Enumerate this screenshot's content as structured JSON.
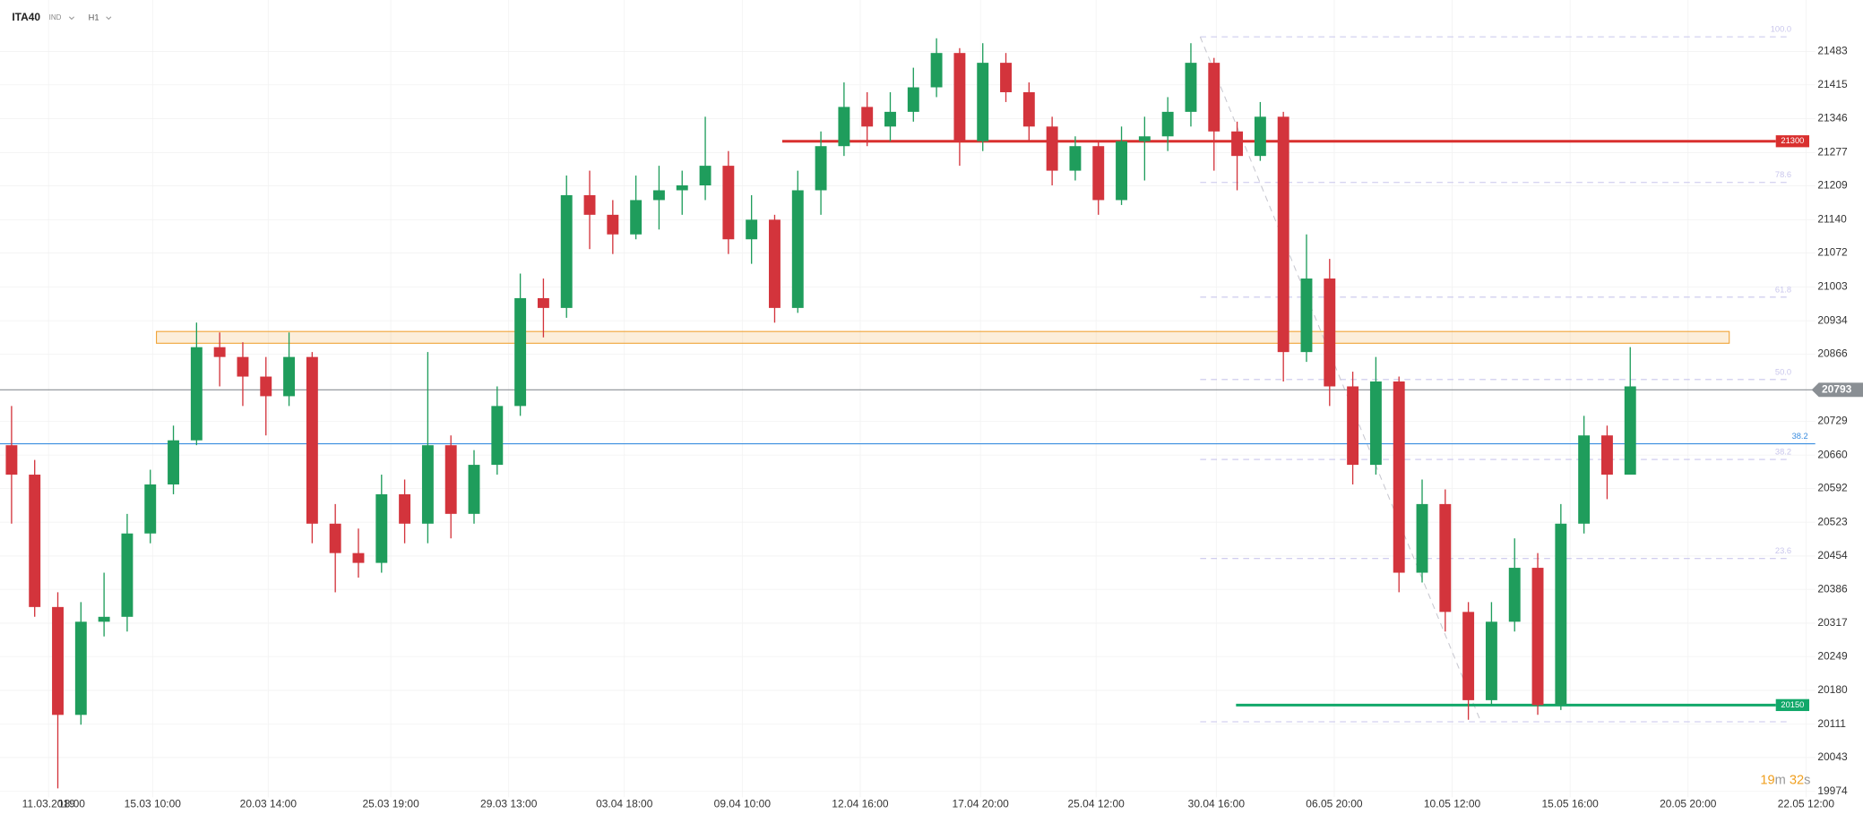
{
  "chart_data": {
    "type": "candlestick",
    "title": "ITA40",
    "market": "IND",
    "interval": "H1",
    "open": [
      20680,
      20620,
      20350,
      20130,
      20320,
      20330,
      20500,
      20600,
      20690,
      20880,
      20860,
      20820,
      20780,
      20860,
      20520,
      20460,
      20440,
      20580,
      20520,
      20680,
      20540,
      20640,
      20760,
      20980,
      20960,
      21190,
      21150,
      21110,
      21180,
      21200,
      21210,
      21250,
      21100,
      21140,
      20960,
      21200,
      21290,
      21370,
      21330,
      21360,
      21410,
      21480,
      21300,
      21460,
      21400,
      21330,
      21240,
      21290,
      21180,
      21300,
      21310,
      21360,
      21460,
      21320,
      21270,
      21350,
      20870,
      21020,
      20800,
      20640,
      20810,
      20420,
      20560,
      20340,
      20160,
      20320,
      20430,
      20150,
      20520,
      20700,
      20620
    ],
    "high": [
      20760,
      20650,
      20380,
      20360,
      20420,
      20540,
      20630,
      20720,
      20930,
      20910,
      20890,
      20860,
      20910,
      20870,
      20560,
      20510,
      20620,
      20610,
      20870,
      20700,
      20670,
      20800,
      21030,
      21020,
      21230,
      21240,
      21180,
      21230,
      21250,
      21240,
      21350,
      21280,
      21190,
      21150,
      21240,
      21320,
      21420,
      21400,
      21400,
      21450,
      21510,
      21490,
      21500,
      21480,
      21420,
      21350,
      21310,
      21300,
      21330,
      21350,
      21390,
      21500,
      21470,
      21340,
      21380,
      21360,
      21110,
      21060,
      20830,
      20860,
      20820,
      20610,
      20590,
      20360,
      20360,
      20490,
      20460,
      20560,
      20740,
      20720,
      20880
    ],
    "low": [
      20520,
      20330,
      19980,
      20110,
      20290,
      20300,
      20480,
      20580,
      20680,
      20800,
      20760,
      20700,
      20760,
      20480,
      20380,
      20410,
      20420,
      20480,
      20480,
      20490,
      20520,
      20620,
      20740,
      20900,
      20940,
      21080,
      21070,
      21100,
      21120,
      21150,
      21180,
      21070,
      21050,
      20930,
      20950,
      21150,
      21270,
      21290,
      21300,
      21340,
      21390,
      21250,
      21280,
      21380,
      21300,
      21210,
      21220,
      21150,
      21170,
      21220,
      21280,
      21330,
      21240,
      21200,
      21260,
      20810,
      20850,
      20760,
      20600,
      20620,
      20380,
      20400,
      20300,
      20120,
      20150,
      20300,
      20130,
      20140,
      20500,
      20570,
      20620
    ],
    "close": [
      20620,
      20350,
      20130,
      20320,
      20330,
      20500,
      20600,
      20690,
      20880,
      20860,
      20820,
      20780,
      20860,
      20520,
      20460,
      20440,
      20580,
      20520,
      20680,
      20540,
      20640,
      20760,
      20980,
      20960,
      21190,
      21150,
      21110,
      21180,
      21200,
      21210,
      21250,
      21100,
      21140,
      20960,
      21200,
      21290,
      21370,
      21330,
      21360,
      21410,
      21480,
      21300,
      21460,
      21400,
      21330,
      21240,
      21290,
      21180,
      21300,
      21310,
      21360,
      21460,
      21320,
      21270,
      21350,
      20870,
      21020,
      20800,
      20640,
      20810,
      20420,
      20560,
      20340,
      20160,
      20320,
      20430,
      20150,
      20520,
      20700,
      20620,
      20800
    ],
    "up_color": "#1f9d5c",
    "down_color": "#d3343c",
    "ylim": [
      19962,
      21588
    ],
    "yticks": [
      21483,
      21415,
      21346,
      21277,
      21209,
      21140,
      21072,
      21003,
      20934,
      20866,
      20729,
      20660,
      20592,
      20523,
      20454,
      20386,
      20317,
      20249,
      20180,
      20111,
      20043,
      19974
    ],
    "xlim": [
      0,
      78.5
    ],
    "xticks": [
      {
        "value": 2.1,
        "label": "11.03.2019"
      },
      {
        "value": 3.1,
        "label": "18:00"
      },
      {
        "value": 6.6,
        "label": "15.03 10:00"
      },
      {
        "value": 11.6,
        "label": "20.03 14:00"
      },
      {
        "value": 16.9,
        "label": "25.03 19:00"
      },
      {
        "value": 22.0,
        "label": "29.03 13:00"
      },
      {
        "value": 27.0,
        "label": "03.04 18:00"
      },
      {
        "value": 32.1,
        "label": "09.04 10:00"
      },
      {
        "value": 37.2,
        "label": "12.04 16:00"
      },
      {
        "value": 42.4,
        "label": "17.04 20:00"
      },
      {
        "value": 47.4,
        "label": "25.04 12:00"
      },
      {
        "value": 52.6,
        "label": "30.04 16:00"
      },
      {
        "value": 57.7,
        "label": "06.05 20:00"
      },
      {
        "value": 62.8,
        "label": "10.05 12:00"
      },
      {
        "value": 67.9,
        "label": "15.05 16:00"
      },
      {
        "value": 73.0,
        "label": "20.05 20:00"
      },
      {
        "value": 78.1,
        "label": "22.05 12:00"
      }
    ],
    "grid": true,
    "resistance": {
      "value": 21300,
      "color": "#d9302f"
    },
    "support": {
      "value": 20150,
      "color": "#12a86a"
    },
    "last_price": {
      "value": 20793,
      "color": "#8a8f94"
    },
    "blue_line": {
      "value": 20683,
      "label": "38.2",
      "color": "#3b8ee0"
    },
    "zone": {
      "low": 20888,
      "high": 20912,
      "color": "#f0a030"
    },
    "fib": {
      "color": "#c9c6ec",
      "levels": [
        {
          "label": "100.0",
          "value": 21513
        },
        {
          "label": "78.6",
          "value": 21216
        },
        {
          "label": "61.8",
          "value": 20982
        },
        {
          "label": "50.0",
          "value": 20814
        },
        {
          "label": "38.2",
          "value": 20651
        },
        {
          "label": "23.6",
          "value": 20449
        },
        {
          "value": 20116
        }
      ]
    },
    "countdown": {
      "minutes": 19,
      "minutes_unit": "m",
      "seconds": 32,
      "seconds_unit": "s"
    }
  }
}
